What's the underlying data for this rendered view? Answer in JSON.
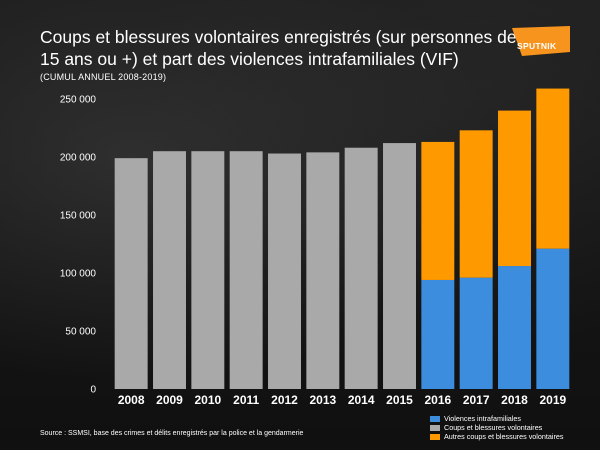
{
  "title": "Coups et blessures volontaires enregistrés (sur personnes de 15 ans ou +) et part des violences intrafamiliales (VIF)",
  "subtitle": "(CUMUL ANNUEL 2008-2019)",
  "logo": {
    "text": "SPUTNIK",
    "color": "#f7941d"
  },
  "source": "Source : SSMSI, base des crimes et délits enregistrés par la police et la gendarmerie",
  "colors": {
    "vif": "#3c8dde",
    "cbv": "#a9a9a9",
    "autres": "#ff9900"
  },
  "legend": {
    "items": [
      {
        "label": "Violences intrafamiliales",
        "color": "#3c8dde"
      },
      {
        "label": "Coups et blessures volontaires",
        "color": "#a9a9a9"
      },
      {
        "label": "Autres coups et blessures volontaires",
        "color": "#ff9900"
      }
    ]
  },
  "chart_data": {
    "type": "bar",
    "stacked": true,
    "categories": [
      "2008",
      "2009",
      "2010",
      "2011",
      "2012",
      "2013",
      "2014",
      "2015",
      "2016",
      "2017",
      "2018",
      "2019"
    ],
    "series": [
      {
        "name": "Coups et blessures volontaires",
        "values": [
          199000,
          205000,
          205000,
          205000,
          203000,
          204000,
          208000,
          212000,
          null,
          null,
          null,
          null
        ]
      },
      {
        "name": "Violences intrafamiliales",
        "values": [
          null,
          null,
          null,
          null,
          null,
          null,
          null,
          null,
          94000,
          96000,
          106000,
          121000
        ]
      },
      {
        "name": "Autres coups et blessures volontaires",
        "values": [
          null,
          null,
          null,
          null,
          null,
          null,
          null,
          null,
          119000,
          127000,
          134000,
          138000
        ]
      }
    ],
    "yticks": [
      "0",
      "50 000",
      "100 000",
      "150 000",
      "200 000",
      "250 000"
    ],
    "ylim": [
      0,
      250000
    ],
    "grid": false,
    "legend_position": "bottom-right"
  }
}
